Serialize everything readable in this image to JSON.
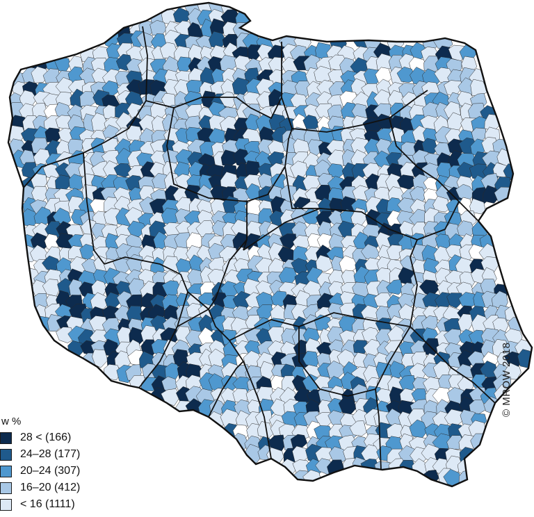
{
  "map": {
    "classes": [
      {
        "key": "c1",
        "color": "#0d2b4e"
      },
      {
        "key": "c2",
        "color": "#1f5a8c"
      },
      {
        "key": "c3",
        "color": "#4f98cf"
      },
      {
        "key": "c4",
        "color": "#a9c8e6"
      },
      {
        "key": "c5",
        "color": "#dde9f6"
      }
    ],
    "white_color": "#ffffff",
    "border_color": "#2a2a2a"
  },
  "legend": {
    "title": "w %",
    "items": [
      {
        "label": "28 < (166)",
        "color": "#0d2b4e"
      },
      {
        "label": "24–28 (177)",
        "color": "#1f5a8c"
      },
      {
        "label": "20–24 (307)",
        "color": "#4f98cf"
      },
      {
        "label": "16–20 (412)",
        "color": "#a9c8e6"
      },
      {
        "label": "< 16 (1111)",
        "color": "#dde9f6"
      }
    ]
  },
  "copyright": "© MROW 2018"
}
